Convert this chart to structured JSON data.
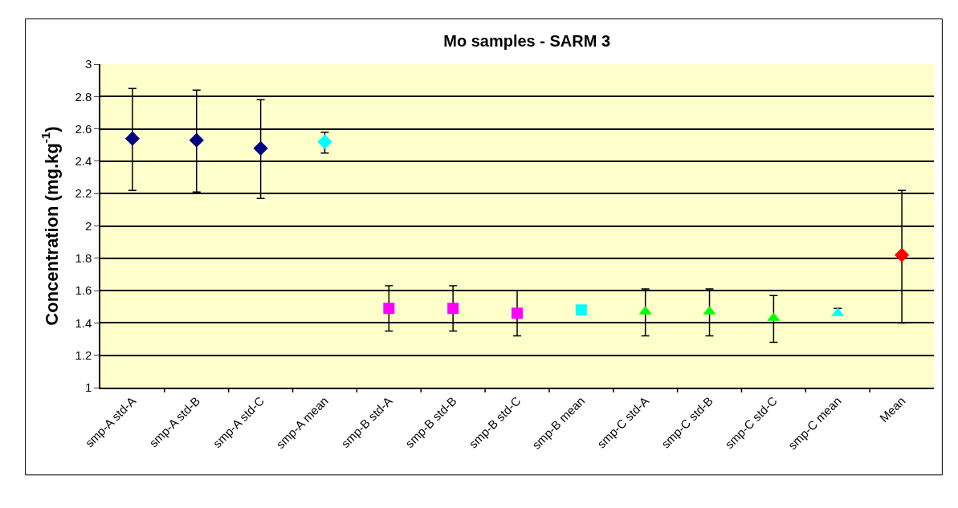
{
  "chart_data": {
    "type": "scatter",
    "title": "Mo samples - SARM 3",
    "ylabel": "Concentration (mg.kg$^{-1}$)",
    "categories": [
      "smp-A std-A",
      "smp-A std-B",
      "smp-A std-C",
      "smp-A mean",
      "smp-B std-A",
      "smp-B std-B",
      "smp-B std-C",
      "smp-B mean",
      "smp-C std-A",
      "smp-C std-B",
      "smp-C std-C",
      "smp-C mean",
      "Mean"
    ],
    "ylim": [
      1,
      3
    ],
    "yticks": [
      1,
      1.2,
      1.4,
      1.6,
      1.8,
      2,
      2.2,
      2.4,
      2.6,
      2.8,
      3
    ],
    "grid": "y",
    "series": [
      {
        "color": "#000080",
        "marker": "diamond",
        "values": [
          2.54,
          2.53,
          2.48,
          null,
          null,
          null,
          null,
          null,
          null,
          null,
          null,
          null,
          null
        ],
        "errors": [
          [
            2.22,
            2.85
          ],
          [
            2.21,
            2.84
          ],
          [
            2.17,
            2.78
          ],
          null,
          null,
          null,
          null,
          null,
          null,
          null,
          null,
          null,
          null
        ]
      },
      {
        "color": "#00ffff",
        "marker": "diamond",
        "values": [
          null,
          null,
          null,
          2.52,
          null,
          null,
          null,
          null,
          null,
          null,
          null,
          null,
          null
        ],
        "errors": [
          null,
          null,
          null,
          [
            2.45,
            2.58
          ],
          null,
          null,
          null,
          null,
          null,
          null,
          null,
          null,
          null
        ]
      },
      {
        "color": "#ff00ff",
        "marker": "square",
        "values": [
          null,
          null,
          null,
          null,
          1.49,
          1.49,
          1.46,
          null,
          null,
          null,
          null,
          null,
          null
        ],
        "errors": [
          null,
          null,
          null,
          null,
          [
            1.35,
            1.63
          ],
          [
            1.35,
            1.63
          ],
          [
            1.32,
            1.6
          ],
          null,
          null,
          null,
          null,
          null,
          null
        ]
      },
      {
        "color": "#00ffff",
        "marker": "square",
        "values": [
          null,
          null,
          null,
          null,
          null,
          null,
          null,
          1.48,
          null,
          null,
          null,
          null,
          null
        ]
      },
      {
        "color": "#00ff00",
        "marker": "triangle",
        "values": [
          null,
          null,
          null,
          null,
          null,
          null,
          null,
          null,
          1.47,
          1.47,
          1.43,
          null,
          null
        ],
        "errors": [
          null,
          null,
          null,
          null,
          null,
          null,
          null,
          null,
          [
            1.32,
            1.61
          ],
          [
            1.32,
            1.61
          ],
          [
            1.28,
            1.57
          ],
          null,
          null
        ]
      },
      {
        "color": "#00ffff",
        "marker": "triangle",
        "values": [
          null,
          null,
          null,
          null,
          null,
          null,
          null,
          null,
          null,
          null,
          null,
          1.46,
          null
        ],
        "errors": [
          null,
          null,
          null,
          null,
          null,
          null,
          null,
          null,
          null,
          null,
          null,
          [
            1.45,
            1.49
          ],
          null
        ]
      },
      {
        "color": "#ff0000",
        "marker": "diamond",
        "values": [
          null,
          null,
          null,
          null,
          null,
          null,
          null,
          null,
          null,
          null,
          null,
          null,
          1.82
        ],
        "errors": [
          null,
          null,
          null,
          null,
          null,
          null,
          null,
          null,
          null,
          null,
          null,
          null,
          [
            1.4,
            2.22
          ]
        ]
      }
    ]
  }
}
